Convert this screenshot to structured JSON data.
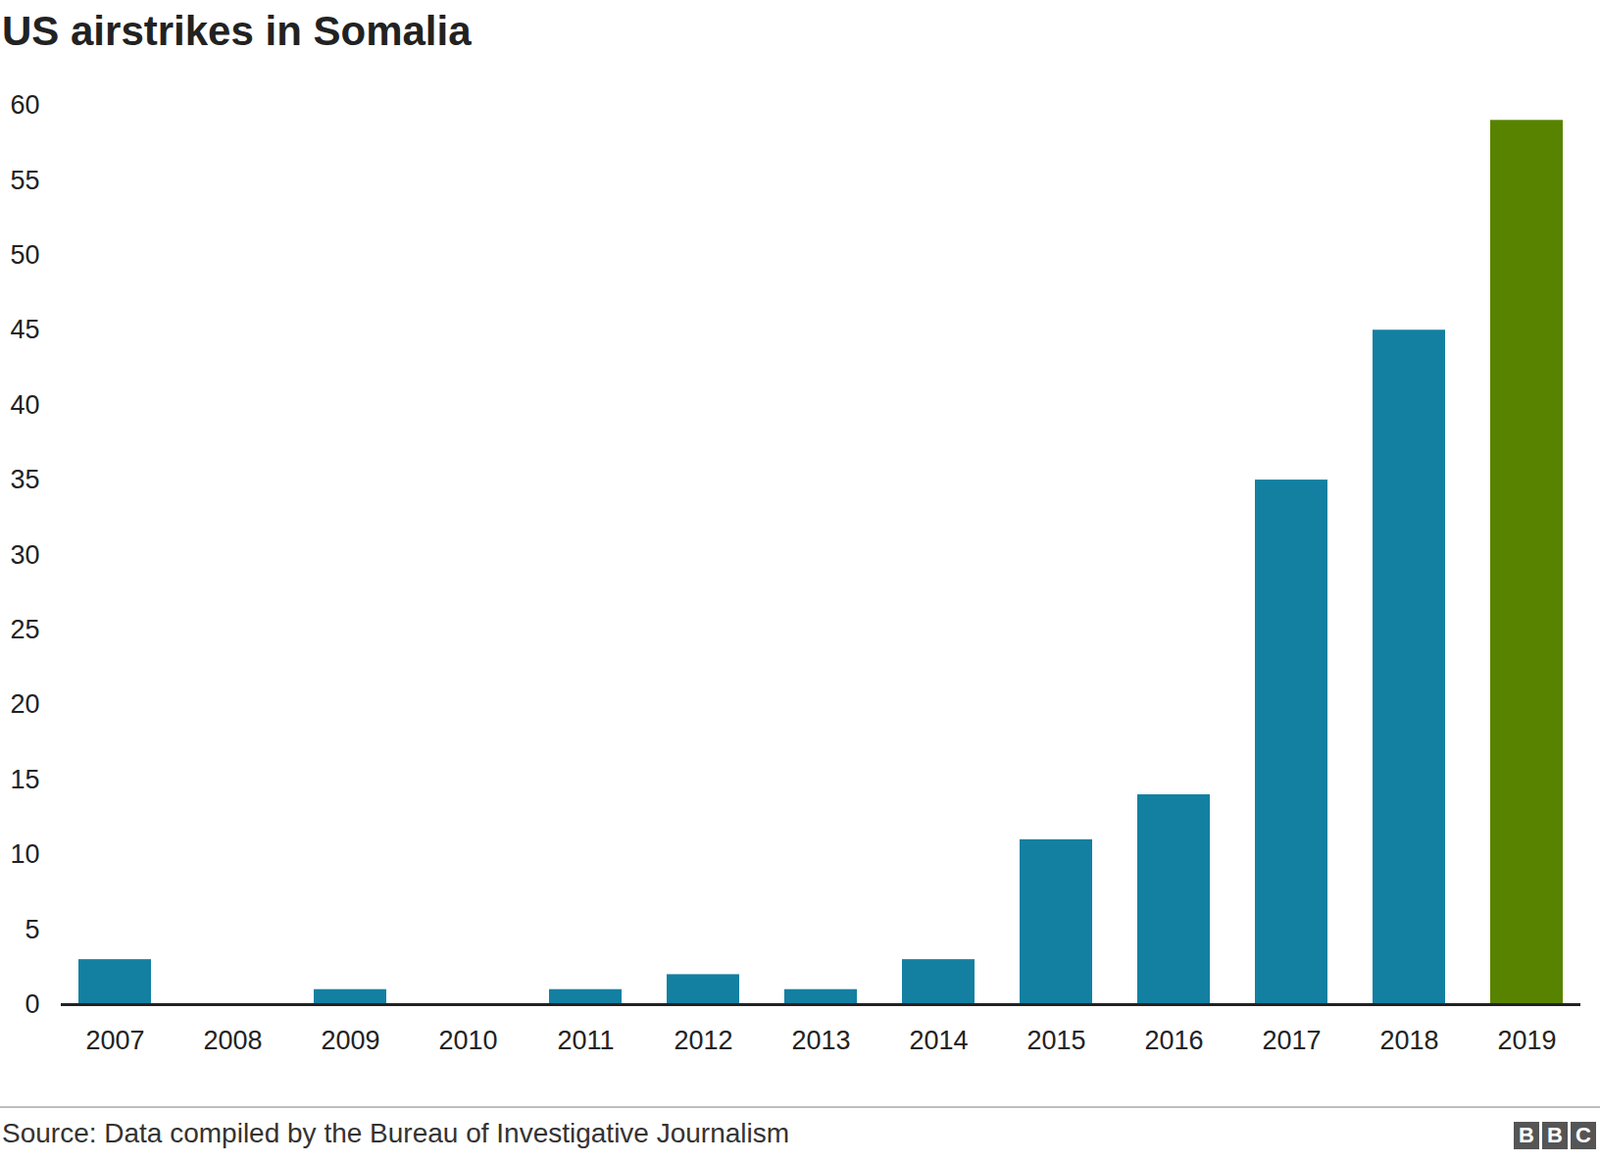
{
  "chart_data": {
    "type": "bar",
    "title": "US airstrikes in Somalia",
    "caption": "Source: Data compiled by the Bureau of Investigative Journalism",
    "logo": "BBC",
    "categories": [
      "2007",
      "2008",
      "2009",
      "2010",
      "2011",
      "2012",
      "2013",
      "2014",
      "2015",
      "2016",
      "2017",
      "2018",
      "2019"
    ],
    "values": [
      3,
      0,
      1,
      0,
      1,
      2,
      1,
      3,
      11,
      14,
      35,
      45,
      59
    ],
    "colors": [
      "#1380a1",
      "#1380a1",
      "#1380a1",
      "#1380a1",
      "#1380a1",
      "#1380a1",
      "#1380a1",
      "#1380a1",
      "#1380a1",
      "#1380a1",
      "#1380a1",
      "#1380a1",
      "#588300"
    ],
    "ylim": [
      0,
      60
    ],
    "yticks": [
      0,
      5,
      10,
      15,
      20,
      25,
      30,
      35,
      40,
      45,
      50,
      55,
      60
    ],
    "grid": false
  }
}
